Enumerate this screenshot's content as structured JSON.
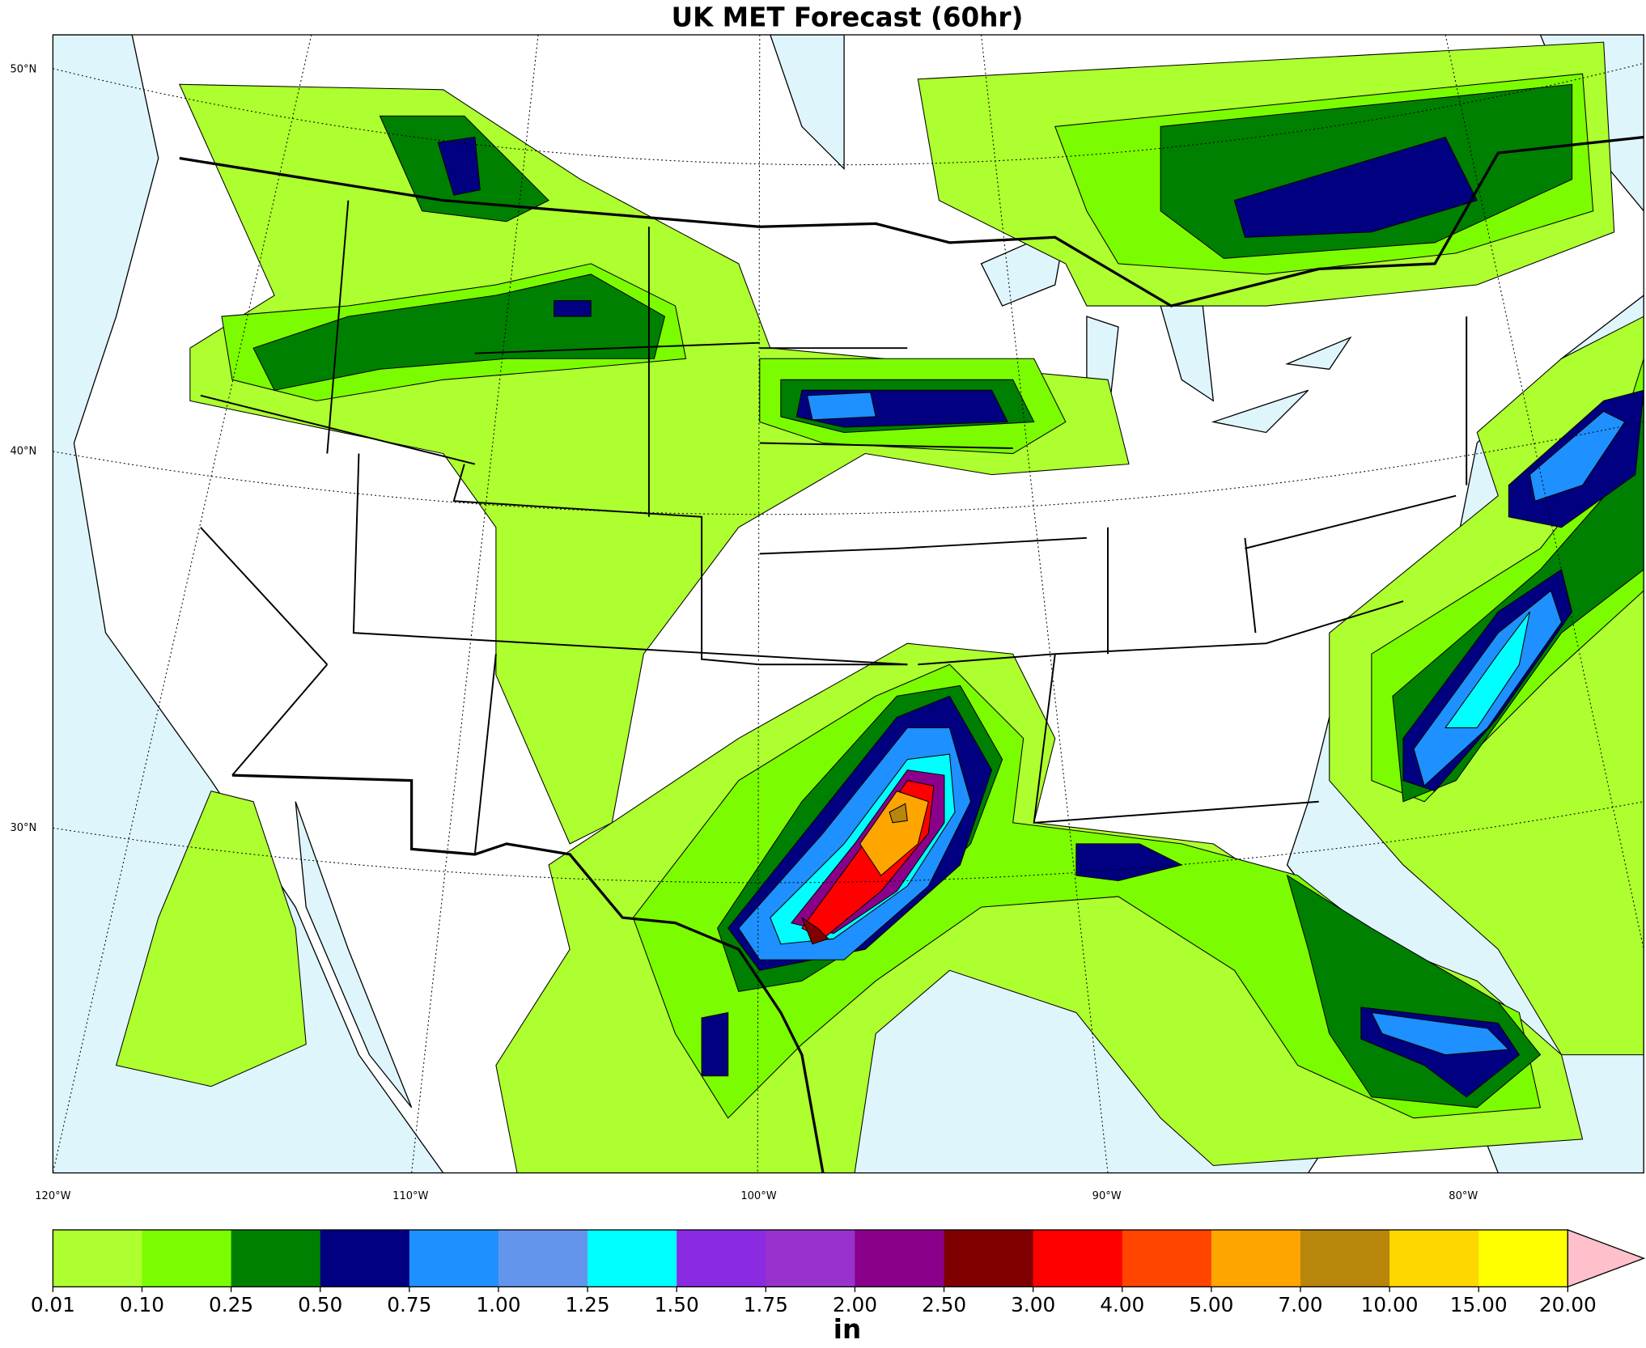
{
  "title": "UK MET Forecast (60hr)",
  "lat_labels": [
    "50°N",
    "40°N",
    "30°N"
  ],
  "lon_labels": [
    "120°W",
    "110°W",
    "100°W",
    "90°W",
    "80°W"
  ],
  "colorbar": {
    "unit": "in",
    "ticks": [
      0.01,
      {
        "value": 0.1,
        "label": "0.10"
      },
      0.25,
      {
        "value": 0.5,
        "label": "0.50"
      },
      0.75,
      {
        "value": 1,
        "label": "1.00"
      },
      1.25,
      {
        "value": 1.5,
        "label": "1.50"
      },
      1.75,
      {
        "value": 2,
        "label": "2.00"
      },
      {
        "value": 2.5,
        "label": "2.50"
      },
      {
        "value": 3,
        "label": "3.00"
      },
      {
        "value": 4,
        "label": "4.00"
      },
      {
        "value": 5,
        "label": "5.00"
      },
      {
        "value": 7,
        "label": "7.00"
      },
      {
        "value": 10,
        "label": "10.00"
      },
      {
        "value": 15,
        "label": "15.00"
      },
      {
        "value": 20,
        "label": "20.00"
      }
    ],
    "colors": [
      "#adff2f",
      "#7cfc00",
      "#008000",
      "#000080",
      "#1e90ff",
      "#6495ed",
      "#00ffff",
      "#8a2be2",
      "#9932cc",
      "#8b008b",
      "#800000",
      "#ff0000",
      "#ff4500",
      "#ffa500",
      "#b8860b",
      "#ffd700",
      "#ffff00"
    ],
    "over_color": "#ffc0cb"
  }
}
